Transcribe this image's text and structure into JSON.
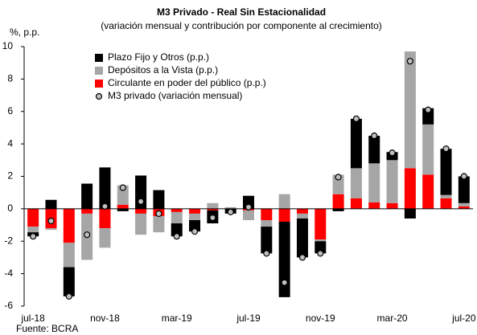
{
  "chart_data": {
    "type": "bar",
    "stacked": true,
    "title": "M3 Privado - Real Sin Estacionalidad",
    "subtitle": "(variación mensual y contribución por componente al crecimiento)",
    "y_label": "%, p.p.",
    "source": "Fuente: BCRA",
    "categories": [
      "jul-18",
      null,
      null,
      null,
      "nov-18",
      null,
      null,
      null,
      "mar-19",
      null,
      null,
      null,
      "jul-19",
      null,
      null,
      null,
      "nov-19",
      null,
      null,
      null,
      "mar-20",
      null,
      null,
      null,
      "jul-20"
    ],
    "series": [
      {
        "name": "Plazo Fijo y Otros (p.p.)",
        "color": "#000000",
        "values": [
          -0.25,
          0.55,
          -1.8,
          1.55,
          2.55,
          -0.15,
          2.05,
          1.15,
          -0.8,
          -0.7,
          -0.8,
          -0.3,
          0.8,
          -1.65,
          -4.65,
          -2.4,
          -0.75,
          -0.15,
          3.05,
          1.7,
          0.5,
          -0.6,
          1.0,
          2.85,
          1.65
        ]
      },
      {
        "name": "Depósitos a la Vista (p.p.)",
        "color": "#a6a6a6",
        "values": [
          -0.35,
          -0.1,
          -1.5,
          -2.85,
          -1.2,
          1.2,
          -1.3,
          -1.0,
          -0.7,
          -0.4,
          0.35,
          0.1,
          -0.6,
          -0.4,
          0.9,
          -0.3,
          -0.1,
          1.2,
          1.85,
          2.4,
          2.65,
          7.2,
          3.1,
          0.2,
          0.2
        ]
      },
      {
        "name": "Circulante en poder del público (p.p.)",
        "color": "#ff0000",
        "values": [
          -1.1,
          -1.2,
          -2.1,
          -0.3,
          -1.2,
          0.25,
          -0.3,
          -0.45,
          -0.2,
          -0.3,
          -0.1,
          0,
          -0.1,
          -0.7,
          -0.8,
          -0.3,
          -1.9,
          0.9,
          0.65,
          0.4,
          0.35,
          2.5,
          2.1,
          0.65,
          0.15
        ]
      },
      {
        "name": "M3 privado (variación mensual)",
        "type": "scatter",
        "color": "#bfbfbf",
        "values": [
          -1.7,
          -0.75,
          -5.4,
          -1.6,
          0.15,
          1.3,
          0.45,
          -0.3,
          -1.7,
          -1.4,
          -0.55,
          -0.2,
          0.1,
          -2.75,
          -4.55,
          -3.0,
          -2.75,
          1.95,
          5.55,
          4.5,
          3.45,
          9.1,
          6.1,
          3.7,
          2.0
        ]
      }
    ],
    "ylim": [
      -6,
      10
    ],
    "yticks": [
      -6,
      -4,
      -2,
      0,
      2,
      4,
      6,
      8,
      10
    ],
    "grid": false,
    "legend": "upper left"
  }
}
